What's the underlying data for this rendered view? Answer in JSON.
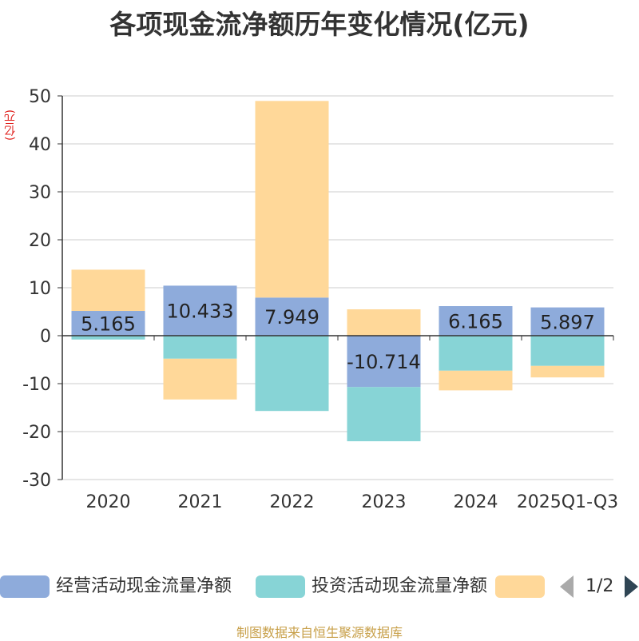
{
  "chart_data": {
    "type": "bar",
    "stacked": true,
    "title": "各项现金流净额历年变化情况(亿元)",
    "ylabel": "(亿元)",
    "ylim": [
      -30,
      50
    ],
    "yticks": [
      50,
      40,
      30,
      20,
      10,
      0,
      -10,
      -20,
      -30
    ],
    "ytick_labels": [
      "50",
      "40",
      "30",
      "20",
      "10",
      "0",
      "-10",
      "-20",
      "-30"
    ],
    "categories": [
      "2020",
      "2021",
      "2022",
      "2023",
      "2024",
      "2025Q1-Q3"
    ],
    "series": [
      {
        "name": "经营活动现金流量净额",
        "color": "#8eabdb",
        "values": [
          5.165,
          10.433,
          7.949,
          -10.714,
          6.165,
          5.897
        ],
        "labels": [
          "5.165",
          "10.433",
          "7.949",
          "-10.714",
          "6.165",
          "5.897"
        ]
      },
      {
        "name": "投资活动现金流量净额",
        "color": "#87d4d6",
        "values": [
          -0.8,
          -4.8,
          -15.7,
          -11.3,
          -7.3,
          -6.3
        ]
      },
      {
        "name": "",
        "color": "#ffd899",
        "values": [
          8.6,
          -8.5,
          41.0,
          5.5,
          -4.1,
          -2.4
        ]
      }
    ],
    "legend_position": "bottom",
    "grid": true
  },
  "legend": {
    "items": [
      {
        "label": "经营活动现金流量净额",
        "color": "#8eabdb"
      },
      {
        "label": "投资活动现金流量净额",
        "color": "#87d4d6"
      },
      {
        "label": "",
        "color": "#ffd899"
      }
    ],
    "page_indicator": "1/2"
  },
  "source_note": "制图数据来自恒生聚源数据库"
}
